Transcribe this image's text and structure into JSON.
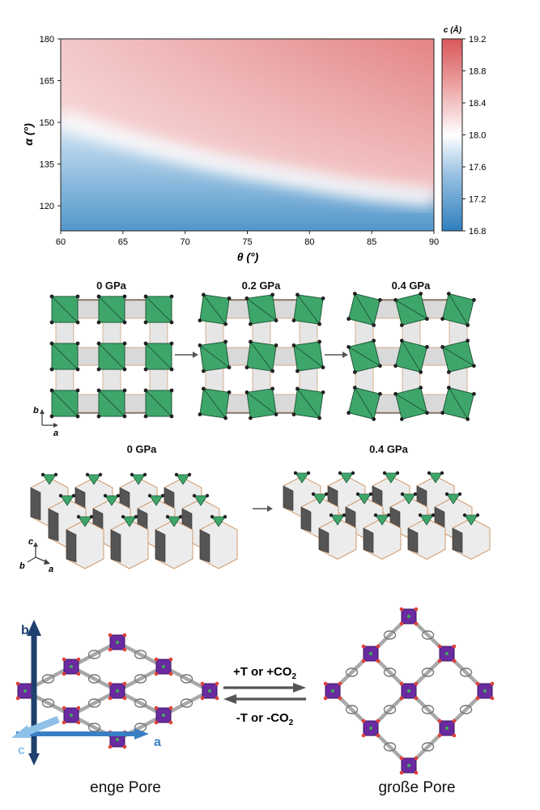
{
  "heatmap": {
    "chart_data": {
      "type": "heatmap",
      "title": "",
      "xlabel": "θ (°)",
      "ylabel": "α (°)",
      "xlim": [
        60,
        90
      ],
      "ylim": [
        111,
        180
      ],
      "x_ticks": [
        "60",
        "65",
        "70",
        "75",
        "80",
        "85",
        "90"
      ],
      "y_ticks": [
        "180",
        "165",
        "150",
        "135",
        "120"
      ],
      "colorbar": {
        "label": "c (Å)",
        "range": [
          16.8,
          19.2
        ],
        "ticks": [
          "19.2",
          "18.8",
          "18.4",
          "18.0",
          "17.6",
          "17.2",
          "16.8"
        ],
        "low_color": "#2f7fbf",
        "mid_color": "#ffffff",
        "high_color": "#d9575a"
      },
      "contour_18_0": [
        {
          "x": 60,
          "y": 151
        },
        {
          "x": 65,
          "y": 144
        },
        {
          "x": 70,
          "y": 138
        },
        {
          "x": 75,
          "y": 133
        },
        {
          "x": 80,
          "y": 129
        },
        {
          "x": 85,
          "y": 125
        },
        {
          "x": 90,
          "y": 123
        }
      ]
    }
  },
  "top_views": {
    "panels": [
      {
        "label": "0 GPa"
      },
      {
        "label": "0.2 GPa"
      },
      {
        "label": "0.4 GPa"
      }
    ],
    "axes": {
      "b": "b",
      "a": "a"
    }
  },
  "perspective": {
    "panels": [
      {
        "label": "0 GPa"
      },
      {
        "label": "0.4 GPa"
      }
    ],
    "axes": {
      "c": "c",
      "b": "b",
      "a": "a"
    }
  },
  "pores": {
    "narrow_label": "enge Pore",
    "large_label": "große Pore",
    "forward_prefix": "+T or +CO",
    "forward_sub": "2",
    "backward_prefix": "-T or -CO",
    "backward_sub": "2",
    "axes": {
      "b": "b",
      "a": "a",
      "c": "c"
    },
    "colors": {
      "node": "#6a2aa0",
      "linker": "#9a9a9a",
      "axis_b": "#1f3f6e",
      "axis_a": "#3a7fc4",
      "axis_c": "#8fc0e8"
    }
  }
}
